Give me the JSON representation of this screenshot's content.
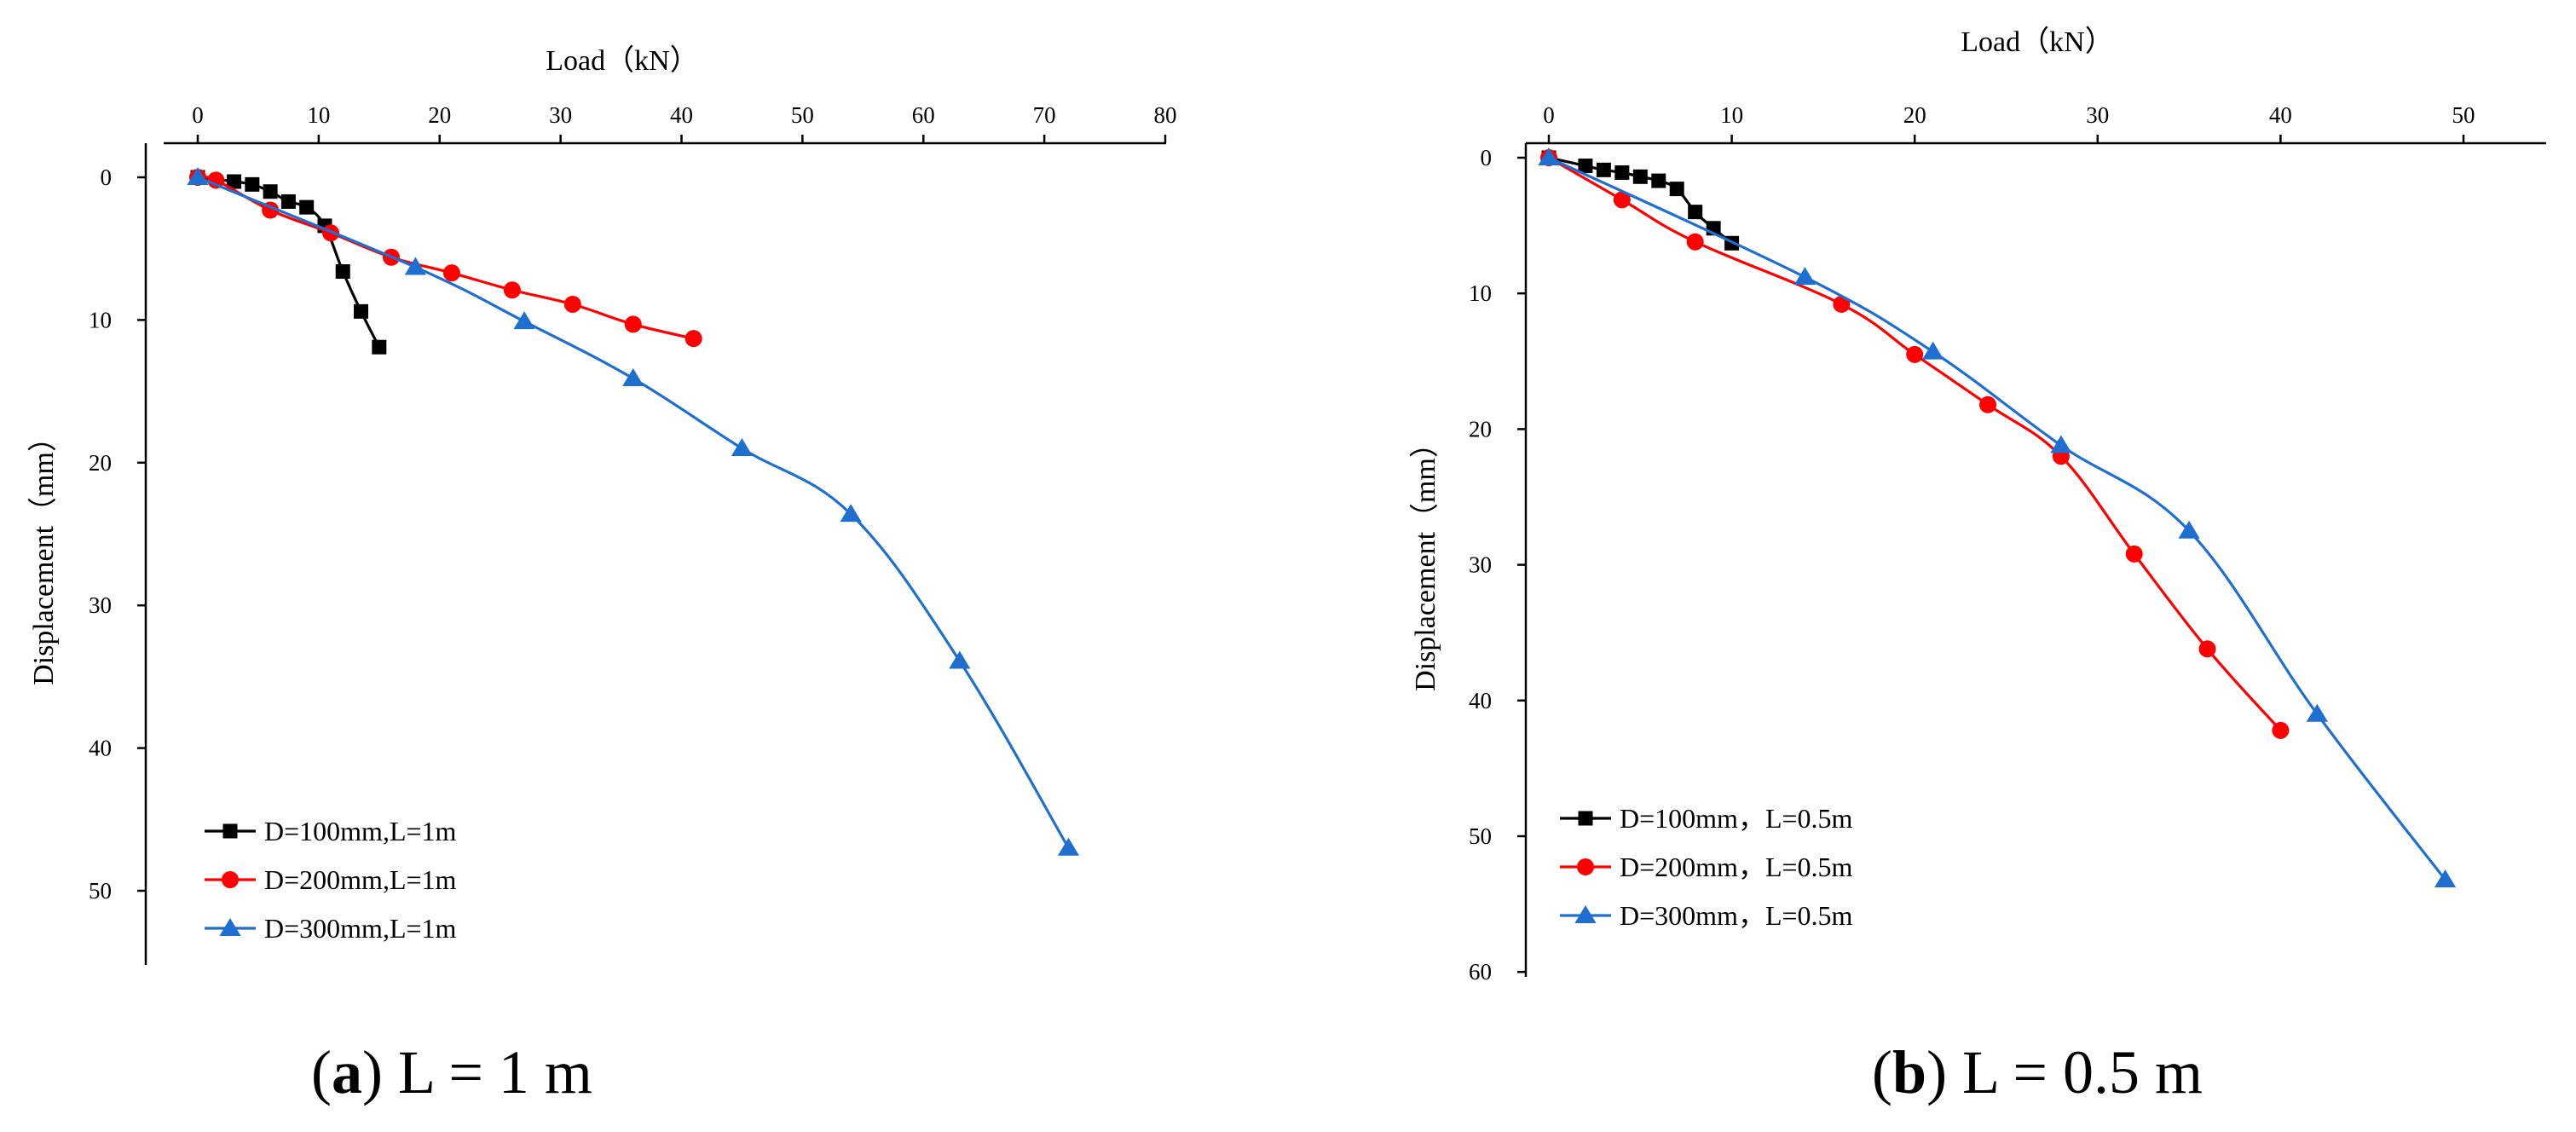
{
  "chart_data": [
    {
      "type": "line",
      "title": "",
      "xlabel": "Load（kN）",
      "ylabel": "Displacement（mm）",
      "xlim": [
        0,
        80
      ],
      "ylim": [
        0,
        55
      ],
      "x_axis_position": "top",
      "y_inverted": true,
      "xticks": [
        0,
        10,
        20,
        30,
        40,
        50,
        60,
        70,
        80
      ],
      "yticks": [
        0,
        10,
        20,
        30,
        40,
        50
      ],
      "legend_position": "bottom-left",
      "caption": {
        "letter": "a",
        "text": " L = 1 m"
      },
      "series": [
        {
          "name": "D=100mm,L=1m",
          "color": "#000000",
          "marker": "square",
          "x": [
            0,
            3,
            4.5,
            6,
            7.5,
            9,
            10.5,
            12,
            13.5,
            15
          ],
          "y": [
            0,
            0.3,
            0.5,
            1.0,
            1.7,
            2.1,
            3.4,
            6.6,
            9.4,
            11.9
          ]
        },
        {
          "name": "D=200mm,L=1m",
          "color": "#ff0000",
          "marker": "circle",
          "x": [
            0,
            1.5,
            6,
            11,
            16,
            21,
            26,
            31,
            36,
            41
          ],
          "y": [
            0,
            0.2,
            2.3,
            3.9,
            5.6,
            6.7,
            7.9,
            8.9,
            10.3,
            11.3
          ]
        },
        {
          "name": "D=300mm,L=1m",
          "color": "#1f6fd1",
          "marker": "triangle",
          "x": [
            0,
            18,
            27,
            36,
            45,
            54,
            63,
            72
          ],
          "y": [
            0,
            6.3,
            10.1,
            14.1,
            19.0,
            23.6,
            33.9,
            47.0
          ]
        }
      ]
    },
    {
      "type": "line",
      "title": "",
      "xlabel": "Load（kN）",
      "ylabel": "Displacement（mm）",
      "xlim": [
        0,
        55
      ],
      "ylim": [
        0,
        60
      ],
      "x_axis_position": "top",
      "y_inverted": true,
      "xticks": [
        0,
        10,
        20,
        30,
        40,
        50
      ],
      "yticks": [
        0,
        10,
        20,
        30,
        40,
        50,
        60
      ],
      "legend_position": "bottom-left",
      "caption": {
        "letter": "b",
        "text": " L = 0.5 m"
      },
      "series": [
        {
          "name": "D=100mm，L=0.5m",
          "color": "#000000",
          "marker": "square",
          "x": [
            0,
            2,
            3,
            4,
            5,
            6,
            7,
            8,
            9,
            10
          ],
          "y": [
            0,
            0.6,
            0.9,
            1.1,
            1.4,
            1.7,
            2.3,
            4.0,
            5.2,
            6.3
          ]
        },
        {
          "name": "D=200mm，L=0.5m",
          "color": "#ff0000",
          "marker": "circle",
          "x": [
            0,
            4,
            8,
            16,
            20,
            24,
            28,
            32,
            36,
            40
          ],
          "y": [
            0,
            3.1,
            6.2,
            10.8,
            14.5,
            18.2,
            22.0,
            29.2,
            36.2,
            42.2
          ]
        },
        {
          "name": "D=300mm，L=0.5m",
          "color": "#1f6fd1",
          "marker": "triangle",
          "x": [
            0,
            14,
            21,
            28,
            35,
            42,
            49
          ],
          "y": [
            0,
            8.8,
            14.3,
            21.2,
            27.5,
            41.0,
            53.2
          ]
        }
      ]
    }
  ]
}
